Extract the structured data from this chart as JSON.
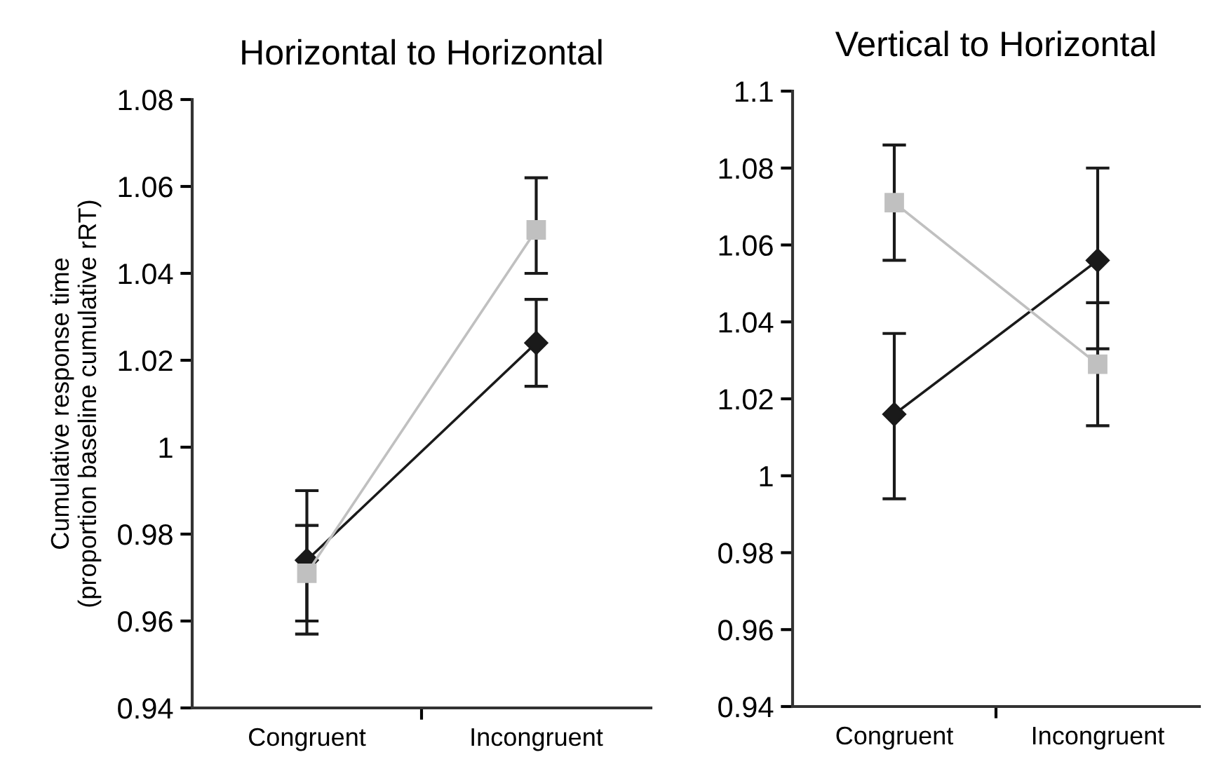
{
  "chart_data": [
    {
      "type": "line",
      "title": "Horizontal to Horizontal",
      "ylabel": "Cumulative response time\n(proportion baseline cumulative rRT)",
      "categories": [
        "Congruent",
        "Incongruent"
      ],
      "ylim": [
        0.94,
        1.08
      ],
      "yticks": [
        0.94,
        0.96,
        0.98,
        1,
        1.02,
        1.04,
        1.06,
        1.08
      ],
      "series": [
        {
          "color": "#1a1a1a",
          "marker": "diamond",
          "values": [
            0.974,
            1.024
          ],
          "errors": [
            [
              0.957,
              0.99
            ],
            [
              1.014,
              1.034
            ]
          ]
        },
        {
          "color": "#c0c0c0",
          "marker": "square",
          "values": [
            0.971,
            1.05
          ],
          "errors": [
            [
              0.96,
              0.982
            ],
            [
              1.04,
              1.062
            ]
          ]
        }
      ]
    },
    {
      "type": "line",
      "title": "Vertical to Horizontal",
      "categories": [
        "Congruent",
        "Incongruent"
      ],
      "ylim": [
        0.94,
        1.1
      ],
      "yticks": [
        0.94,
        0.96,
        0.98,
        1,
        1.02,
        1.04,
        1.06,
        1.08,
        1.1
      ],
      "series": [
        {
          "color": "#1a1a1a",
          "marker": "diamond",
          "values": [
            1.016,
            1.056
          ],
          "errors": [
            [
              0.994,
              1.037
            ],
            [
              1.033,
              1.08
            ]
          ]
        },
        {
          "color": "#c0c0c0",
          "marker": "square",
          "values": [
            1.071,
            1.029
          ],
          "errors": [
            [
              1.056,
              1.086
            ],
            [
              1.013,
              1.045
            ]
          ]
        }
      ]
    }
  ]
}
